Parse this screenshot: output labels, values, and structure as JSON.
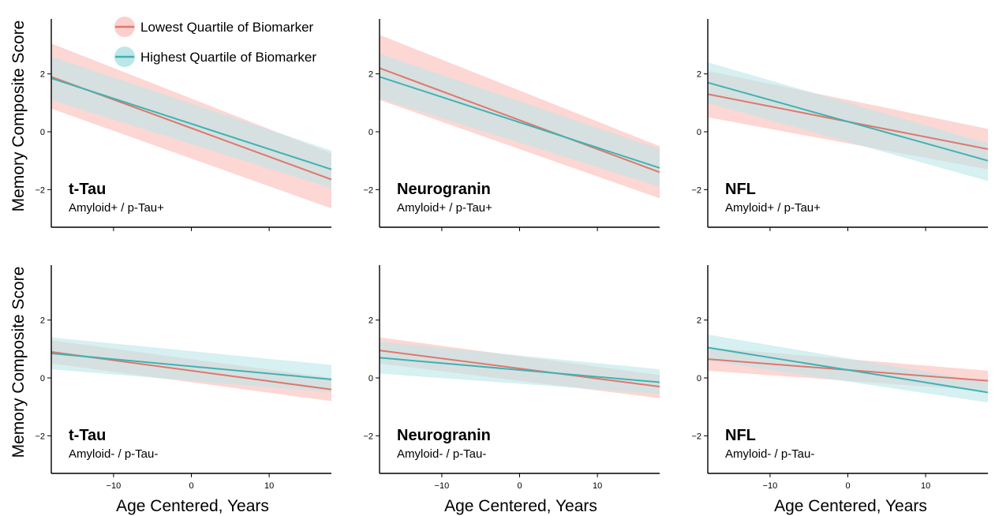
{
  "figure": {
    "ylabel": "Memory Composite Score",
    "xlabel": "Age Centered,  Years",
    "legend": {
      "position": "top-left",
      "items": [
        {
          "label": "Lowest Quartile of Biomarker",
          "color": "#e0776d",
          "band": "#fbd0cc"
        },
        {
          "label": "Highest Quartile of Biomarker",
          "color": "#3fb2b3",
          "band": "#bde6e7"
        }
      ]
    }
  },
  "chart_data": [
    {
      "type": "line",
      "title": "t-Tau",
      "subtitle": "Amyloid+ / p-Tau+",
      "xlim": [
        -18,
        18
      ],
      "ylim": [
        -3.3,
        3.9
      ],
      "xticks": [
        -10,
        0,
        10
      ],
      "yticks": [
        -2,
        0,
        2
      ],
      "series": [
        {
          "name": "Lowest Quartile of Biomarker",
          "x": [
            -18,
            18
          ],
          "y": [
            1.9,
            -1.65
          ],
          "lower": [
            0.8,
            -2.65
          ],
          "upper": [
            3.05,
            -0.75
          ]
        },
        {
          "name": "Highest Quartile of Biomarker",
          "x": [
            -18,
            18
          ],
          "y": [
            1.85,
            -1.3
          ],
          "lower": [
            1.1,
            -1.95
          ],
          "upper": [
            2.6,
            -0.65
          ]
        }
      ]
    },
    {
      "type": "line",
      "title": "Neurogranin",
      "subtitle": "Amyloid+ / p-Tau+",
      "xlim": [
        -18,
        18
      ],
      "ylim": [
        -3.3,
        3.9
      ],
      "xticks": [
        -10,
        0,
        10
      ],
      "yticks": [
        -2,
        0,
        2
      ],
      "series": [
        {
          "name": "Lowest Quartile of Biomarker",
          "x": [
            -18,
            18
          ],
          "y": [
            2.2,
            -1.4
          ],
          "lower": [
            1.1,
            -2.3
          ],
          "upper": [
            3.35,
            -0.5
          ]
        },
        {
          "name": "Highest Quartile of Biomarker",
          "x": [
            -18,
            18
          ],
          "y": [
            1.9,
            -1.25
          ],
          "lower": [
            1.15,
            -1.9
          ],
          "upper": [
            2.7,
            -0.6
          ]
        }
      ]
    },
    {
      "type": "line",
      "title": "NFL",
      "subtitle": "Amyloid+ / p-Tau+",
      "xlim": [
        -18,
        18
      ],
      "ylim": [
        -3.3,
        3.9
      ],
      "xticks": [
        -10,
        0,
        10
      ],
      "yticks": [
        -2,
        0,
        2
      ],
      "series": [
        {
          "name": "Lowest Quartile of Biomarker",
          "x": [
            -18,
            18
          ],
          "y": [
            1.3,
            -0.6
          ],
          "lower": [
            0.5,
            -1.3
          ],
          "upper": [
            2.1,
            0.1
          ]
        },
        {
          "name": "Highest Quartile of Biomarker",
          "x": [
            -18,
            18
          ],
          "y": [
            1.7,
            -1.0
          ],
          "lower": [
            1.0,
            -1.7
          ],
          "upper": [
            2.4,
            -0.4
          ]
        }
      ]
    },
    {
      "type": "line",
      "title": "t-Tau",
      "subtitle": "Amyloid- / p-Tau-",
      "xlim": [
        -18,
        18
      ],
      "ylim": [
        -3.3,
        3.9
      ],
      "xticks": [
        -10,
        0,
        10
      ],
      "yticks": [
        -2,
        0,
        2
      ],
      "series": [
        {
          "name": "Lowest Quartile of Biomarker",
          "x": [
            -18,
            18
          ],
          "y": [
            0.9,
            -0.4
          ],
          "lower": [
            0.5,
            -0.8
          ],
          "upper": [
            1.3,
            0.0
          ]
        },
        {
          "name": "Highest Quartile of Biomarker",
          "x": [
            -18,
            18
          ],
          "y": [
            0.85,
            -0.05
          ],
          "lower": [
            0.3,
            -0.5
          ],
          "upper": [
            1.4,
            0.45
          ]
        }
      ]
    },
    {
      "type": "line",
      "title": "Neurogranin",
      "subtitle": "Amyloid- / p-Tau-",
      "xlim": [
        -18,
        18
      ],
      "ylim": [
        -3.3,
        3.9
      ],
      "xticks": [
        -10,
        0,
        10
      ],
      "yticks": [
        -2,
        0,
        2
      ],
      "series": [
        {
          "name": "Lowest Quartile of Biomarker",
          "x": [
            -18,
            18
          ],
          "y": [
            0.95,
            -0.3
          ],
          "lower": [
            0.5,
            -0.7
          ],
          "upper": [
            1.4,
            0.1
          ]
        },
        {
          "name": "Highest Quartile of Biomarker",
          "x": [
            -18,
            18
          ],
          "y": [
            0.7,
            -0.15
          ],
          "lower": [
            0.15,
            -0.55
          ],
          "upper": [
            1.25,
            0.3
          ]
        }
      ]
    },
    {
      "type": "line",
      "title": "NFL",
      "subtitle": "Amyloid- / p-Tau-",
      "xlim": [
        -18,
        18
      ],
      "ylim": [
        -3.3,
        3.9
      ],
      "xticks": [
        -10,
        0,
        10
      ],
      "yticks": [
        -2,
        0,
        2
      ],
      "series": [
        {
          "name": "Lowest Quartile of Biomarker",
          "x": [
            -18,
            18
          ],
          "y": [
            0.65,
            -0.1
          ],
          "lower": [
            0.25,
            -0.45
          ],
          "upper": [
            1.05,
            0.25
          ]
        },
        {
          "name": "Highest Quartile of Biomarker",
          "x": [
            -18,
            18
          ],
          "y": [
            1.05,
            -0.5
          ],
          "lower": [
            0.6,
            -0.85
          ],
          "upper": [
            1.5,
            -0.15
          ]
        }
      ]
    }
  ]
}
